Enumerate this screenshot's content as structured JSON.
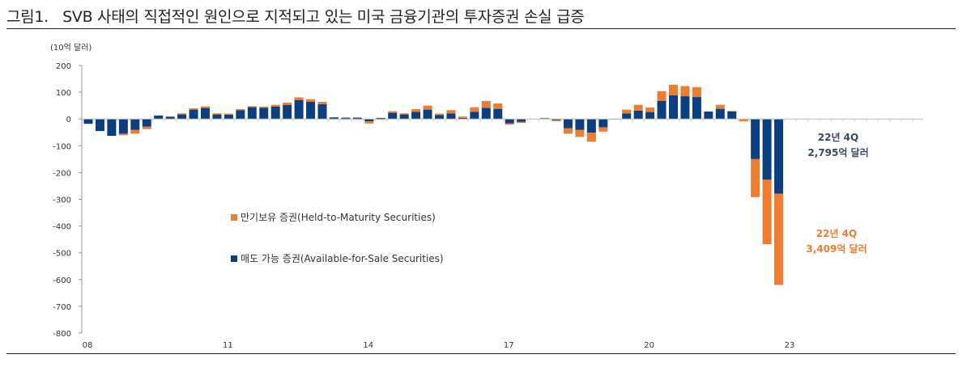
{
  "title": "그림1.   SVB 사태의 직접적인 원인으로 지적되고 있는 미국 금융기관의 투자증권 손실 급증",
  "chart_data": {
    "type": "bar",
    "stacked": true,
    "ylabel": "(10억 달러)",
    "ylim": [
      -800,
      200
    ],
    "y_ticks": [
      200,
      100,
      0,
      -100,
      -200,
      -300,
      -400,
      -500,
      -600,
      -700,
      -800
    ],
    "x_ticks": [
      "08",
      "11",
      "14",
      "17",
      "20",
      "23"
    ],
    "x_range": "2008 Q1 – 2022 Q4 (quarterly)",
    "legend_position": "center-left",
    "grid": false,
    "series": [
      {
        "name": "매도 가능 증권(Available-for-Sale Securities)",
        "color": "#0b3f7f",
        "values": [
          -18,
          -45,
          -63,
          -55,
          -41,
          -29,
          13,
          8,
          17,
          35,
          41,
          17,
          16,
          33,
          44,
          42,
          46,
          52,
          71,
          64,
          55,
          6,
          5,
          5,
          -9,
          4,
          23,
          17,
          27,
          35,
          15,
          21,
          4,
          27,
          42,
          38,
          -16,
          -11,
          1,
          3,
          -4,
          -35,
          -41,
          -51,
          -31,
          0,
          21,
          31,
          26,
          68,
          89,
          85,
          82,
          28,
          38,
          28,
          0,
          -150,
          -227,
          -279.5
        ]
      },
      {
        "name": "만기보유 증권(Held-to-Maturity Securities)",
        "color": "#ed7d31",
        "values": [
          0,
          0,
          0,
          -6,
          -14,
          -9,
          0,
          2,
          4,
          5,
          6,
          4,
          4,
          4,
          4,
          4,
          7,
          9,
          10,
          10,
          9,
          -2,
          -3,
          -3,
          -8,
          -3,
          6,
          4,
          10,
          15,
          5,
          12,
          5,
          17,
          25,
          20,
          -5,
          -4,
          0,
          1,
          -4,
          -20,
          -26,
          -34,
          -16,
          -2,
          14,
          22,
          17,
          36,
          39,
          38,
          37,
          0,
          15,
          2,
          -9,
          -142,
          -241,
          -340.9
        ]
      }
    ],
    "annotations": [
      {
        "line1": "22년 4Q",
        "line2": "2,795억 달러",
        "color": "#3a4a63"
      },
      {
        "line1": "22년 4Q",
        "line2": "3,409억 달러",
        "color": "#ed7d31"
      }
    ]
  }
}
